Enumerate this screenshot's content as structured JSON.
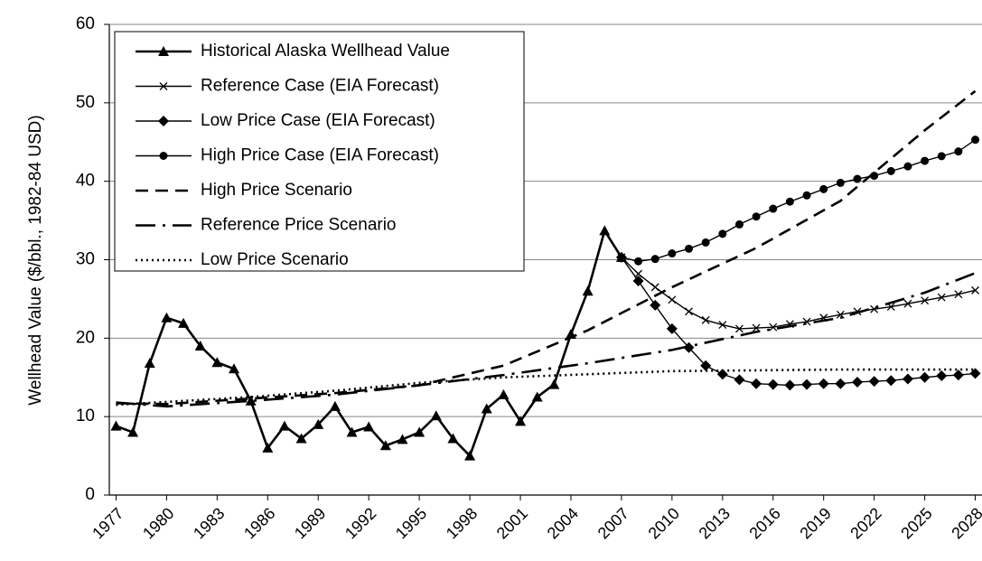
{
  "chart_data": {
    "type": "line",
    "ylabel": "Wellhead Value ($/bbl., 1982-84 USD)",
    "xlim": [
      1976.6,
      2028.4
    ],
    "ylim": [
      0,
      60
    ],
    "xticks": [
      1977,
      1980,
      1983,
      1986,
      1989,
      1992,
      1995,
      1998,
      2001,
      2004,
      2007,
      2010,
      2013,
      2016,
      2019,
      2022,
      2025,
      2028
    ],
    "yticks": [
      0,
      10,
      20,
      30,
      40,
      50,
      60
    ],
    "grid": true,
    "legend": "upper left",
    "series": [
      {
        "name": "Historical Alaska Wellhead Value",
        "color": "#000000",
        "marker": "triangle",
        "dash": "solid",
        "x": [
          1977,
          1978,
          1979,
          1980,
          1981,
          1982,
          1983,
          1984,
          1985,
          1986,
          1987,
          1988,
          1989,
          1990,
          1991,
          1992,
          1993,
          1994,
          1995,
          1996,
          1997,
          1998,
          1999,
          2000,
          2001,
          2002,
          2003,
          2004,
          2005,
          2006,
          2007
        ],
        "values": [
          8.8,
          8.0,
          16.8,
          22.6,
          21.9,
          19.0,
          16.9,
          16.1,
          12.0,
          6.0,
          8.8,
          7.2,
          9.0,
          11.3,
          8.0,
          8.7,
          6.3,
          7.1,
          8.0,
          10.1,
          7.2,
          5.0,
          11.0,
          12.8,
          9.4,
          12.5,
          14.1,
          20.5,
          26.0,
          33.7,
          30.3
        ]
      },
      {
        "name": "Reference Case (EIA Forecast)",
        "color": "#000000",
        "marker": "x",
        "dash": "solid",
        "x": [
          2007,
          2008,
          2009,
          2010,
          2011,
          2012,
          2013,
          2014,
          2015,
          2016,
          2017,
          2018,
          2019,
          2020,
          2021,
          2022,
          2023,
          2024,
          2025,
          2026,
          2027,
          2028
        ],
        "values": [
          30.3,
          28.2,
          26.5,
          24.9,
          23.4,
          22.3,
          21.7,
          21.2,
          21.3,
          21.4,
          21.8,
          22.1,
          22.6,
          23.0,
          23.4,
          23.7,
          24.0,
          24.4,
          24.8,
          25.2,
          25.6,
          26.1
        ]
      },
      {
        "name": "Low Price Case (EIA Forecast)",
        "color": "#000000",
        "marker": "diamond",
        "dash": "solid",
        "x": [
          2007,
          2008,
          2009,
          2010,
          2011,
          2012,
          2013,
          2014,
          2015,
          2016,
          2017,
          2018,
          2019,
          2020,
          2021,
          2022,
          2023,
          2024,
          2025,
          2026,
          2027,
          2028
        ],
        "values": [
          30.3,
          27.3,
          24.2,
          21.2,
          18.8,
          16.5,
          15.4,
          14.7,
          14.2,
          14.1,
          14.0,
          14.1,
          14.2,
          14.2,
          14.4,
          14.5,
          14.6,
          14.8,
          15.0,
          15.2,
          15.3,
          15.5
        ]
      },
      {
        "name": "High Price Case (EIA Forecast)",
        "color": "#000000",
        "marker": "circle",
        "dash": "solid",
        "x": [
          2007,
          2008,
          2009,
          2010,
          2011,
          2012,
          2013,
          2014,
          2015,
          2016,
          2017,
          2018,
          2019,
          2020,
          2021,
          2022,
          2023,
          2024,
          2025,
          2026,
          2027,
          2028
        ],
        "values": [
          30.3,
          29.8,
          30.1,
          30.8,
          31.4,
          32.2,
          33.3,
          34.5,
          35.5,
          36.5,
          37.4,
          38.2,
          39.0,
          39.8,
          40.3,
          40.7,
          41.3,
          41.9,
          42.6,
          43.2,
          43.8,
          45.3
        ]
      },
      {
        "name": "High Price Scenario",
        "color": "#000000",
        "marker": "none",
        "dash": "dash",
        "x": [
          1977,
          1980,
          1985,
          1990,
          1995,
          2000,
          2005,
          2010,
          2015,
          2020,
          2025,
          2028
        ],
        "values": [
          11.7,
          11.6,
          12.3,
          13.0,
          14.0,
          16.5,
          21.0,
          26.5,
          31.5,
          37.5,
          46.5,
          51.5
        ]
      },
      {
        "name": "Reference Price Scenario",
        "color": "#000000",
        "marker": "none",
        "dash": "dashdot",
        "x": [
          1977,
          1980,
          1985,
          1990,
          1995,
          2000,
          2005,
          2010,
          2015,
          2020,
          2025,
          2028
        ],
        "values": [
          11.8,
          11.3,
          12.0,
          12.8,
          14.0,
          15.3,
          16.8,
          18.5,
          20.8,
          22.6,
          25.8,
          28.3
        ]
      },
      {
        "name": "Low Price Scenario",
        "color": "#000000",
        "marker": "none",
        "dash": "dot",
        "x": [
          1977,
          1985,
          1990,
          1995,
          2000,
          2005,
          2010,
          2015,
          2020,
          2028
        ],
        "values": [
          11.5,
          12.5,
          13.3,
          14.3,
          15.0,
          15.4,
          15.8,
          15.9,
          16.0,
          16.0
        ]
      }
    ]
  }
}
